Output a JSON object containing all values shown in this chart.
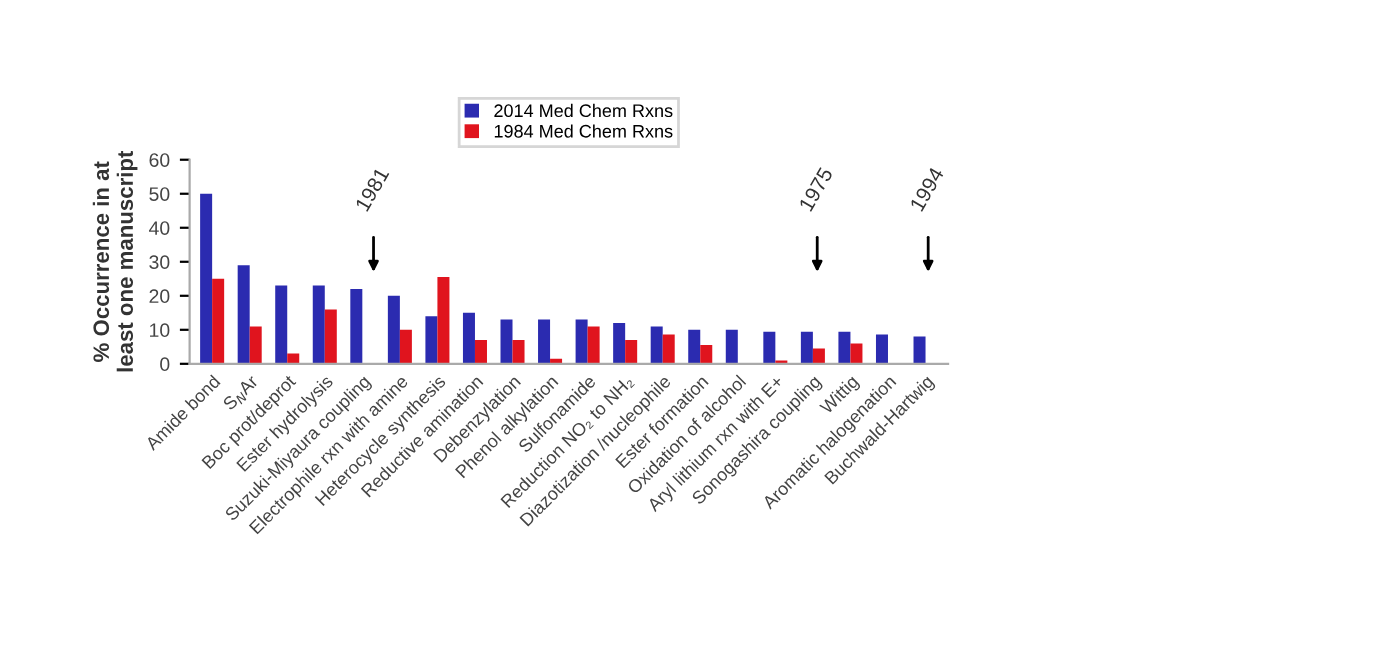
{
  "chart_data": {
    "type": "bar",
    "ylabel": "% Occurrence in at\nleast one manuscript",
    "categories": [
      "Amide bond",
      "S$_{N}$Ar",
      "Boc prot/deprot",
      "Ester hydrolysis",
      "Suzuki-Miyaura coupling",
      "Electrophile rxn with amine",
      "Heterocycle synthesis",
      "Reductive amination",
      "Debenzylation",
      "Phenol alkylation",
      "Sulfonamide",
      "Reduction NO₂ to NH₂",
      "Diazotization /nucleophile",
      "Ester formation",
      "Oxidation of alcohol",
      "Aryl lithium rxn with E+",
      "Sonogashira coupling",
      "Wittig",
      "Aromatic halogenation",
      "Buchwald-Hartwig"
    ],
    "series": [
      {
        "name": "2014 Med Chem Rxns",
        "color": "#2b2bb0",
        "values": [
          50,
          29,
          23,
          23,
          22,
          20,
          14,
          15,
          13,
          13,
          13,
          12,
          11,
          10,
          10,
          9.4,
          9.4,
          9.4,
          8.6,
          8
        ]
      },
      {
        "name": "1984 Med Chem Rxns",
        "color": "#e0141e",
        "values": [
          25,
          11,
          3,
          16,
          0,
          10,
          25.5,
          7,
          7,
          1.5,
          11,
          7,
          8.6,
          5.5,
          0,
          1,
          4.5,
          6,
          0,
          0
        ]
      }
    ],
    "ylim": [
      0,
      60
    ],
    "yticks": [
      0,
      10,
      20,
      30,
      40,
      50,
      60
    ],
    "grid": false,
    "legend": "top",
    "annotations": [
      "1981",
      "1975",
      "1994"
    ]
  }
}
